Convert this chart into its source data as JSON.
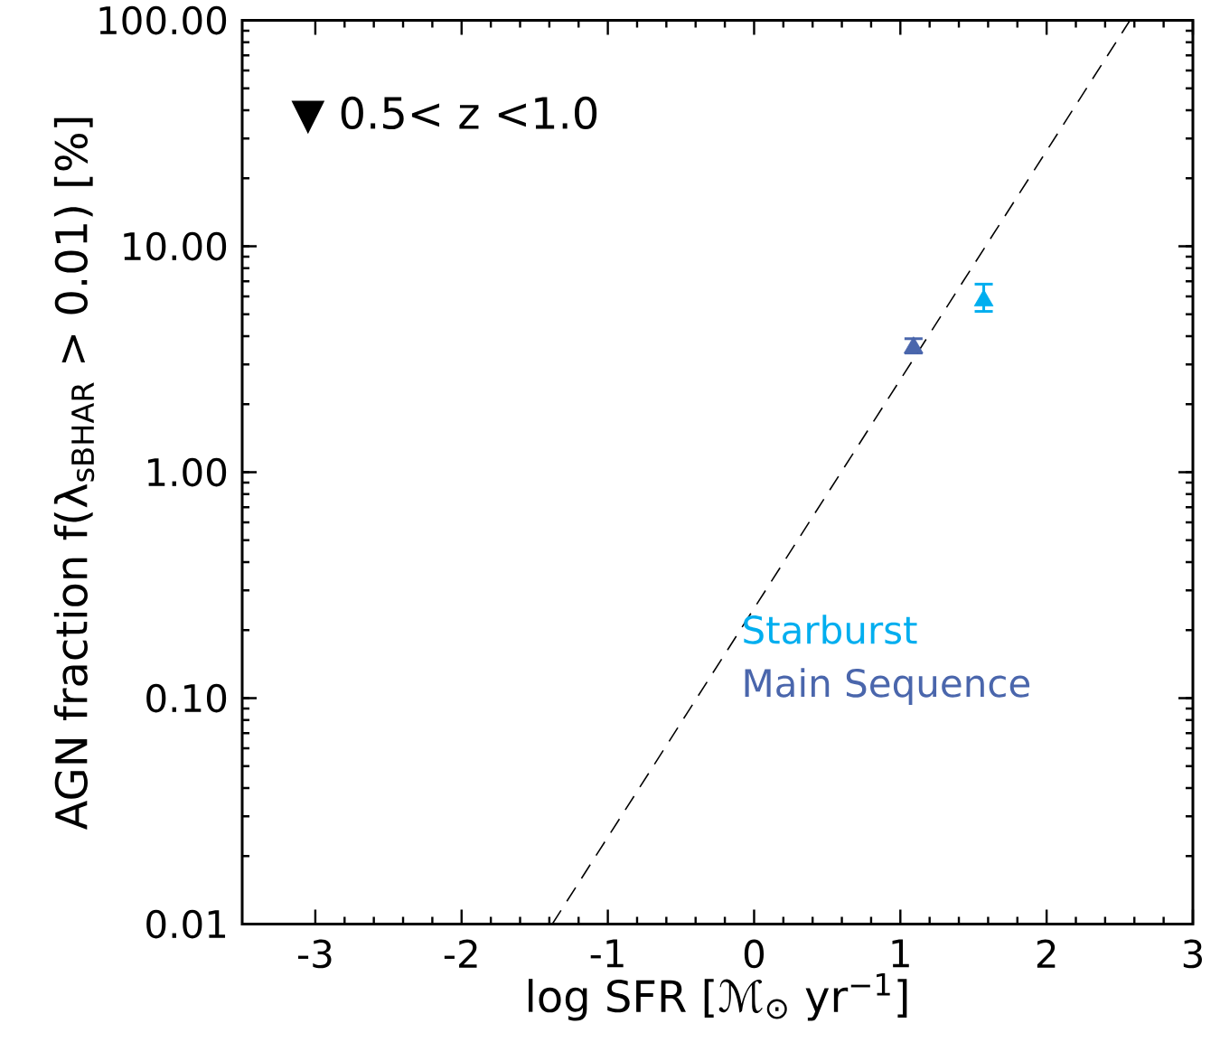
{
  "chart_data": {
    "type": "scatter",
    "xlabel": "log SFR [ℳ$_{⊙}$ yr$^{−1}$]",
    "ylabel": "AGN fraction   f(λ$_{sBHAR}$ > 0.01)   [%]",
    "annotations": [
      "▼ 0.5< z <1.0"
    ],
    "log": "y",
    "marker": "triangle",
    "legend": "bottom right",
    "xlim": [
      -3.5,
      3
    ],
    "xticks": [
      -3,
      -2,
      -1,
      0,
      1,
      2,
      3
    ],
    "ylim": [
      0.01,
      100
    ],
    "yticks": [
      {
        "value": 0.01,
        "label": "0.01"
      },
      {
        "value": 0.1,
        "label": "0.10"
      },
      {
        "value": 1,
        "label": "1.00"
      },
      {
        "value": 10,
        "label": "10.00"
      },
      {
        "value": 100,
        "label": "100.00"
      }
    ],
    "series": [
      {
        "name": "Starburst",
        "color": "#00aeef",
        "x": [
          1.57
        ],
        "values": [
          5.75
        ],
        "errors": [
          [
            5.15,
            6.8
          ]
        ]
      },
      {
        "name": "Main Sequence",
        "color": "#4a66ac",
        "x": [
          1.09
        ],
        "values": [
          3.56
        ],
        "errors": [
          [
            3.37,
            3.9
          ]
        ]
      },
      {
        "type": "line",
        "color": "#000000",
        "line_style": "dashed",
        "marker": "none",
        "x": [
          -1.38,
          2.57
        ],
        "values": [
          0.01,
          100
        ]
      }
    ]
  }
}
